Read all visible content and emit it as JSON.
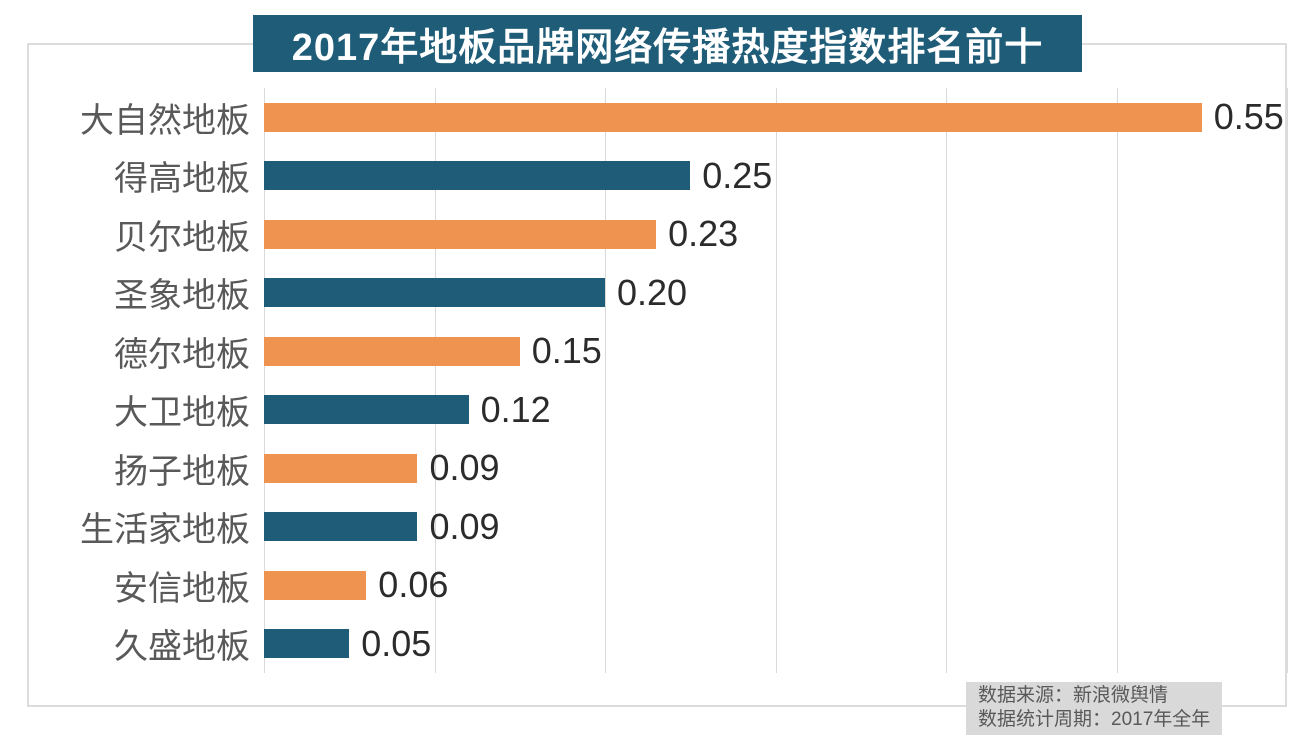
{
  "title": "2017年地板品牌网络传播热度指数排名前十",
  "footer": {
    "source_line": "数据来源：新浪微舆情",
    "period_line": "数据统计周期：2017年全年"
  },
  "colors": {
    "orange": "#EF9350",
    "blue": "#1E5C78",
    "title_bg": "#1E5C78",
    "title_text": "#FFFFFF",
    "grid": "#D9D9D9",
    "frame_border": "#DCDCDC",
    "category_label": "#595959",
    "value_label": "#2B2B2B",
    "footer_bg": "#D9D9D9",
    "footer_text": "#595959"
  },
  "chart_data": {
    "type": "bar",
    "orientation": "horizontal",
    "title": "2017年地板品牌网络传播热度指数排名前十",
    "categories": [
      "大自然地板",
      "得高地板",
      "贝尔地板",
      "圣象地板",
      "德尔地板",
      "大卫地板",
      "扬子地板",
      "生活家地板",
      "安信地板",
      "久盛地板"
    ],
    "values": [
      0.55,
      0.25,
      0.23,
      0.2,
      0.15,
      0.12,
      0.09,
      0.09,
      0.06,
      0.05
    ],
    "value_labels": [
      "0.55",
      "0.25",
      "0.23",
      "0.20",
      "0.15",
      "0.12",
      "0.09",
      "0.09",
      "0.06",
      "0.05"
    ],
    "xlabel": "",
    "ylabel": "",
    "xlim": [
      0,
      0.6
    ],
    "gridline_interval": 0.1,
    "grid": true,
    "legend": null,
    "bar_color_pattern": [
      "orange",
      "blue"
    ],
    "data_labels_shown": true,
    "axis_tick_labels_shown": false
  }
}
